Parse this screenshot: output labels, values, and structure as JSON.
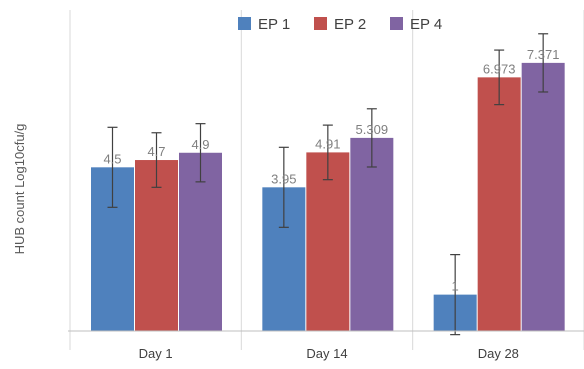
{
  "chart_data": {
    "type": "bar",
    "title": "",
    "xlabel": "",
    "ylabel": "HUB count Log10cfu/g",
    "categories": [
      "Day 1",
      "Day 14",
      "Day 28"
    ],
    "ylim": [
      0,
      8.0
    ],
    "grid": false,
    "legend_position": "top",
    "series": [
      {
        "name": "EP 1",
        "color": "#4f81bd",
        "values": [
          4.5,
          3.95,
          1
        ],
        "labels": [
          "4.5",
          "3.95",
          "1"
        ],
        "errors": [
          1.1,
          1.1,
          1.1
        ]
      },
      {
        "name": "EP 2",
        "color": "#c0504d",
        "values": [
          4.7,
          4.91,
          6.973
        ],
        "labels": [
          "4.7",
          "4.91",
          "6.973"
        ],
        "errors": [
          0.75,
          0.75,
          0.75
        ]
      },
      {
        "name": "EP 4",
        "color": "#8064a2",
        "values": [
          4.9,
          5.309,
          7.371
        ],
        "labels": [
          "4.9",
          "5.309",
          "7.371"
        ],
        "errors": [
          0.8,
          0.8,
          0.8
        ]
      }
    ]
  }
}
